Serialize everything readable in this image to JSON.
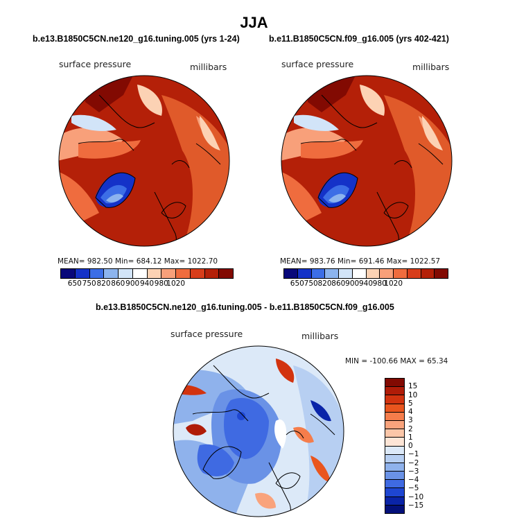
{
  "chart_data": [
    {
      "type": "heatmap",
      "map_projection": "north-polar-stereographic",
      "title": "b.e13.B1850C5CN.ne120_g16.tuning.005 (yrs 1-24)",
      "left_label": "surface pressure",
      "right_label": "millibars",
      "stats_text": "MEAN= 982.50   Min= 684.12   Max= 1022.70",
      "mean": 982.5,
      "min": 684.12,
      "max": 1022.7,
      "colorbar": {
        "levels": [
          "650",
          "750",
          "820",
          "860",
          "900",
          "940",
          "980",
          "1020"
        ],
        "colors": [
          "#08087a",
          "#1432c8",
          "#3c6ee6",
          "#8cb4ee",
          "#d2e4f8",
          "#ffffff",
          "#fcd2b4",
          "#f8a07a",
          "#ef6c3e",
          "#d73d1a",
          "#b42008",
          "#820a02"
        ]
      }
    },
    {
      "type": "heatmap",
      "map_projection": "north-polar-stereographic",
      "title": "b.e11.B1850C5CN.f09_g16.005 (yrs 402-421)",
      "left_label": "surface pressure",
      "right_label": "millibars",
      "stats_text": "MEAN= 983.76   Min= 691.46   Max= 1022.57",
      "mean": 983.76,
      "min": 691.46,
      "max": 1022.57,
      "colorbar": {
        "levels": [
          "650",
          "750",
          "820",
          "860",
          "900",
          "940",
          "980",
          "1020"
        ],
        "colors": [
          "#08087a",
          "#1432c8",
          "#3c6ee6",
          "#8cb4ee",
          "#d2e4f8",
          "#ffffff",
          "#fcd2b4",
          "#f8a07a",
          "#ef6c3e",
          "#d73d1a",
          "#b42008",
          "#820a02"
        ]
      }
    },
    {
      "type": "heatmap",
      "map_projection": "north-polar-stereographic",
      "title": "b.e13.B1850C5CN.ne120_g16.tuning.005 - b.e11.B1850C5CN.f09_g16.005",
      "left_label": "surface pressure",
      "right_label": "millibars",
      "stats_text": "MIN = -100.66  MAX =   65.34",
      "min": -100.66,
      "max": 65.34,
      "colorbar": {
        "levels_top_to_bottom": [
          "15",
          "10",
          "5",
          "4",
          "3",
          "2",
          "1",
          "0",
          "−1",
          "−2",
          "−3",
          "−4",
          "−5",
          "−10",
          "−15"
        ],
        "colors_top_to_bottom": [
          "#820a02",
          "#b01c08",
          "#d2330f",
          "#e9551e",
          "#f57d4b",
          "#f9a37c",
          "#fbc6a8",
          "#fde5d6",
          "#dce9f8",
          "#b7cff2",
          "#8fb2ec",
          "#6a92e6",
          "#3f6ae2",
          "#1e46d2",
          "#0a24a8",
          "#03107a"
        ]
      }
    }
  ],
  "main_title": "JJA"
}
